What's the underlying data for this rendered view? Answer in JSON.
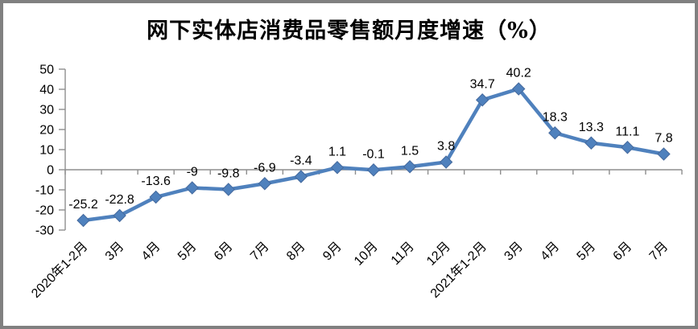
{
  "chart_data": {
    "type": "line",
    "title": "网下实体店消费品零售额月度增速（%）",
    "categories": [
      "2020年1-2月",
      "3月",
      "4月",
      "5月",
      "6月",
      "7月",
      "8月",
      "9月",
      "10月",
      "11月",
      "12月",
      "2021年1-2月",
      "3月",
      "4月",
      "5月",
      "6月",
      "7月"
    ],
    "series": [
      {
        "name": "网下实体店消费品零售额月度增速",
        "values": [
          -25.2,
          -22.8,
          -13.6,
          -9,
          -9.8,
          -6.9,
          -3.4,
          1.1,
          -0.1,
          1.5,
          3.8,
          34.7,
          40.2,
          18.3,
          13.3,
          11.1,
          7.8
        ],
        "labels": [
          "-25.2",
          "-22.8",
          "-13.6",
          "-9",
          "-9.8",
          "-6.9",
          "-3.4",
          "1.1",
          "-0.1",
          "1.5",
          "3.8",
          "34.7",
          "40.2",
          "18.3",
          "13.3",
          "11.1",
          "7.8"
        ]
      }
    ],
    "ylim": [
      -30,
      50
    ],
    "ytick_step": 10,
    "yticks": [
      "50",
      "40",
      "30",
      "20",
      "10",
      "0",
      "-10",
      "-20",
      "-30"
    ],
    "grid": false,
    "legend": "none",
    "marker": "diamond",
    "x_label_rotation": 45
  },
  "colors": {
    "series": "#4F81BD",
    "marker_stroke": "#44699D",
    "axis": "#8E8E8E",
    "border": "#808080",
    "text": "#000000",
    "background": "#FFFFFF"
  }
}
